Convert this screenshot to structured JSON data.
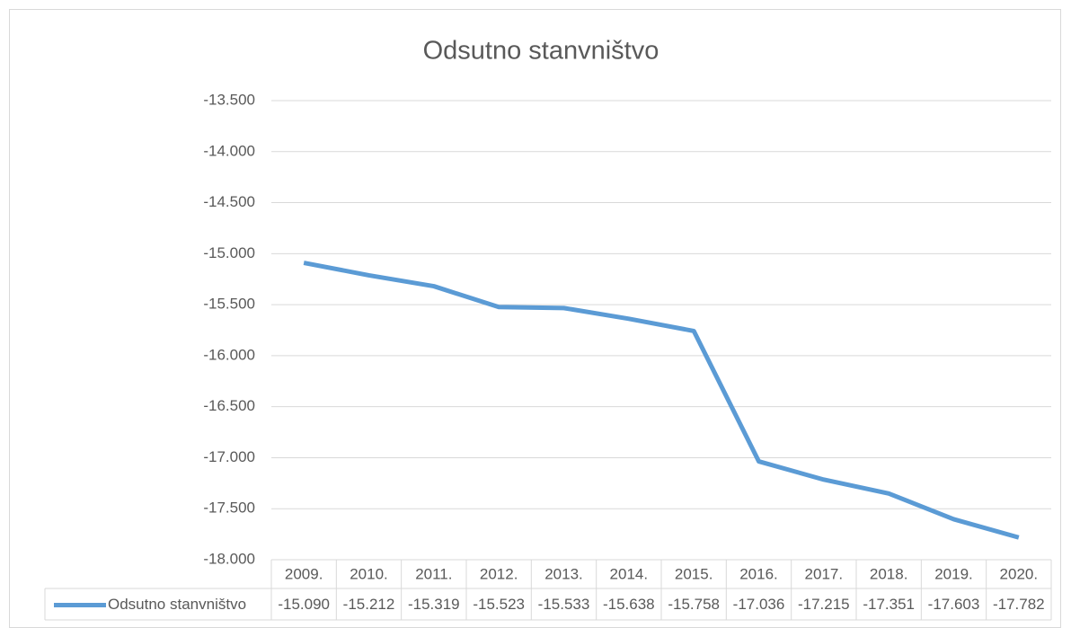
{
  "chart_data": {
    "type": "line",
    "title": "Odsutno stanvništvo",
    "categories": [
      "2009.",
      "2010.",
      "2011.",
      "2012.",
      "2013.",
      "2014.",
      "2015.",
      "2016.",
      "2017.",
      "2018.",
      "2019.",
      "2020."
    ],
    "series": [
      {
        "name": "Odsutno stanvništvo",
        "color": "#5b9bd5",
        "values": [
          -15090,
          -15212,
          -15319,
          -15523,
          -15533,
          -15638,
          -15758,
          -17036,
          -17215,
          -17351,
          -17603,
          -17782
        ],
        "value_labels": [
          "-15.090",
          "-15.212",
          "-15.319",
          "-15.523",
          "-15.533",
          "-15.638",
          "-15.758",
          "-17.036",
          "-17.215",
          "-17.351",
          "-17.603",
          "-17.782"
        ]
      }
    ],
    "ylim": [
      -18000,
      -13500
    ],
    "yticks": [
      {
        "value": -13500,
        "label": "-13.500"
      },
      {
        "value": -14000,
        "label": "-14.000"
      },
      {
        "value": -14500,
        "label": "-14.500"
      },
      {
        "value": -15000,
        "label": "-15.000"
      },
      {
        "value": -15500,
        "label": "-15.500"
      },
      {
        "value": -16000,
        "label": "-16.000"
      },
      {
        "value": -16500,
        "label": "-16.500"
      },
      {
        "value": -17000,
        "label": "-17.000"
      },
      {
        "value": -17500,
        "label": "-17.500"
      },
      {
        "value": -18000,
        "label": "-18.000"
      }
    ],
    "grid": true
  }
}
